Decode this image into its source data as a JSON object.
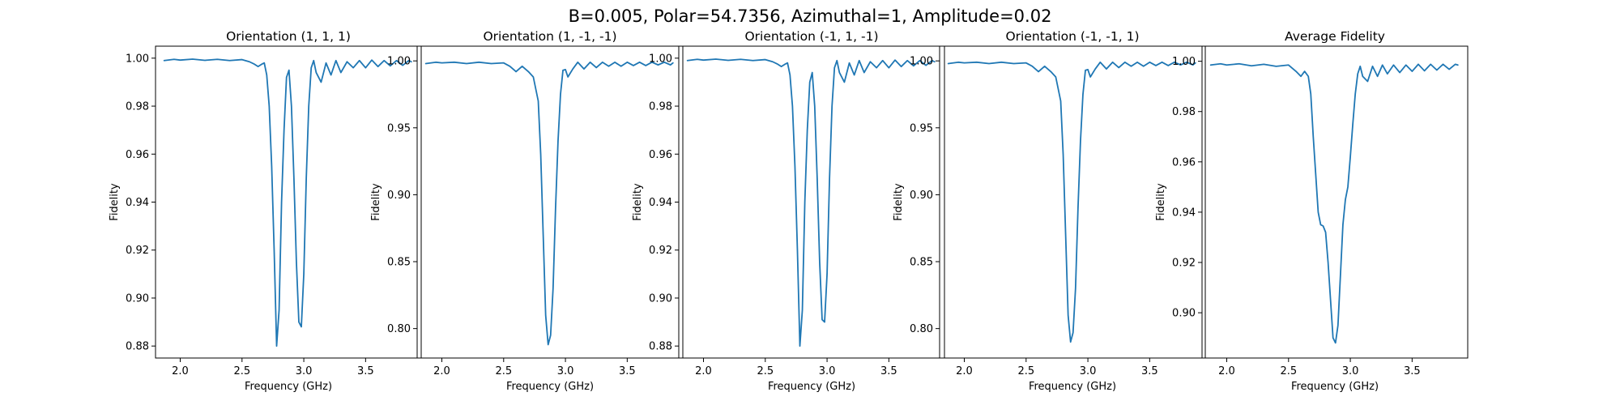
{
  "figure": {
    "suptitle": "B=0.005, Polar=54.7356, Azimuthal=1, Amplitude=0.02"
  },
  "colors": {
    "line": "#1f77b4"
  },
  "chart_data": [
    {
      "type": "line",
      "title": "Orientation (1, 1, 1)",
      "xlabel": "Frequency (GHz)",
      "ylabel": "Fidelity",
      "xlim": [
        1.8,
        3.95
      ],
      "ylim": [
        0.875,
        1.005
      ],
      "xticks": [
        2.0,
        2.5,
        3.0,
        3.5
      ],
      "xtick_labels": [
        "2.0",
        "2.5",
        "3.0",
        "3.5"
      ],
      "yticks": [
        0.88,
        0.9,
        0.92,
        0.94,
        0.96,
        0.98,
        1.0
      ],
      "ytick_labels": [
        "0.88",
        "0.90",
        "0.92",
        "0.94",
        "0.96",
        "0.98",
        "1.00"
      ],
      "series": [
        {
          "x": [
            1.87,
            1.95,
            2.0,
            2.1,
            2.2,
            2.3,
            2.4,
            2.5,
            2.56,
            2.6,
            2.63,
            2.66,
            2.68,
            2.7,
            2.72,
            2.74,
            2.76,
            2.78,
            2.8,
            2.82,
            2.84,
            2.86,
            2.88,
            2.9,
            2.92,
            2.94,
            2.96,
            2.98,
            3.0,
            3.02,
            3.04,
            3.06,
            3.08,
            3.1,
            3.14,
            3.18,
            3.22,
            3.26,
            3.3,
            3.35,
            3.4,
            3.45,
            3.5,
            3.55,
            3.6,
            3.65,
            3.7,
            3.75,
            3.8,
            3.85,
            3.87
          ],
          "y": [
            0.999,
            0.9995,
            0.9992,
            0.9996,
            0.9991,
            0.9995,
            0.999,
            0.9994,
            0.9985,
            0.9975,
            0.9965,
            0.9975,
            0.998,
            0.993,
            0.98,
            0.955,
            0.92,
            0.88,
            0.895,
            0.94,
            0.97,
            0.992,
            0.995,
            0.98,
            0.95,
            0.915,
            0.89,
            0.888,
            0.91,
            0.95,
            0.98,
            0.996,
            0.999,
            0.994,
            0.99,
            0.998,
            0.993,
            0.999,
            0.994,
            0.9985,
            0.996,
            0.999,
            0.996,
            0.9992,
            0.9965,
            0.999,
            0.9968,
            0.999,
            0.997,
            0.999,
            0.9985
          ]
        }
      ]
    },
    {
      "type": "line",
      "title": "Orientation (1, -1, -1)",
      "xlabel": "Frequency (GHz)",
      "ylabel": "Fidelity",
      "xlim": [
        1.8,
        3.95
      ],
      "ylim": [
        0.778,
        1.011
      ],
      "xticks": [
        2.0,
        2.5,
        3.0,
        3.5
      ],
      "xtick_labels": [
        "2.0",
        "2.5",
        "3.0",
        "3.5"
      ],
      "yticks": [
        0.8,
        0.85,
        0.9,
        0.95,
        1.0
      ],
      "ytick_labels": [
        "0.80",
        "0.85",
        "0.90",
        "0.95",
        "1.00"
      ],
      "series": [
        {
          "x": [
            1.87,
            1.95,
            2.0,
            2.1,
            2.2,
            2.3,
            2.4,
            2.5,
            2.55,
            2.6,
            2.65,
            2.7,
            2.74,
            2.78,
            2.8,
            2.82,
            2.84,
            2.86,
            2.88,
            2.9,
            2.92,
            2.94,
            2.96,
            2.98,
            3.0,
            3.02,
            3.06,
            3.1,
            3.15,
            3.2,
            3.25,
            3.3,
            3.35,
            3.4,
            3.45,
            3.5,
            3.55,
            3.6,
            3.65,
            3.7,
            3.75,
            3.8,
            3.85,
            3.87
          ],
          "y": [
            0.998,
            0.999,
            0.9985,
            0.999,
            0.998,
            0.999,
            0.998,
            0.9985,
            0.996,
            0.992,
            0.996,
            0.992,
            0.988,
            0.97,
            0.93,
            0.87,
            0.81,
            0.788,
            0.795,
            0.83,
            0.89,
            0.94,
            0.975,
            0.993,
            0.9935,
            0.988,
            0.994,
            0.999,
            0.994,
            0.999,
            0.995,
            0.999,
            0.996,
            0.999,
            0.996,
            0.999,
            0.9965,
            0.999,
            0.9965,
            0.999,
            0.997,
            0.999,
            0.997,
            0.9985
          ]
        }
      ]
    },
    {
      "type": "line",
      "title": "Orientation (-1, 1, -1)",
      "xlabel": "Frequency (GHz)",
      "ylabel": "Fidelity",
      "xlim": [
        1.8,
        3.95
      ],
      "ylim": [
        0.875,
        1.005
      ],
      "xticks": [
        2.0,
        2.5,
        3.0,
        3.5
      ],
      "xtick_labels": [
        "2.0",
        "2.5",
        "3.0",
        "3.5"
      ],
      "yticks": [
        0.88,
        0.9,
        0.92,
        0.94,
        0.96,
        0.98,
        1.0
      ],
      "ytick_labels": [
        "0.88",
        "0.90",
        "0.92",
        "0.94",
        "0.96",
        "0.98",
        "1.00"
      ],
      "series": [
        {
          "x": [
            1.87,
            1.95,
            2.0,
            2.1,
            2.2,
            2.3,
            2.4,
            2.5,
            2.56,
            2.6,
            2.63,
            2.66,
            2.68,
            2.7,
            2.72,
            2.74,
            2.76,
            2.78,
            2.8,
            2.82,
            2.84,
            2.86,
            2.88,
            2.9,
            2.92,
            2.94,
            2.96,
            2.98,
            3.0,
            3.02,
            3.04,
            3.06,
            3.08,
            3.1,
            3.14,
            3.18,
            3.22,
            3.26,
            3.3,
            3.35,
            3.4,
            3.45,
            3.5,
            3.55,
            3.6,
            3.65,
            3.7,
            3.75,
            3.8,
            3.85,
            3.87
          ],
          "y": [
            0.999,
            0.9995,
            0.9992,
            0.9996,
            0.9991,
            0.9995,
            0.999,
            0.9994,
            0.9985,
            0.9975,
            0.9965,
            0.9975,
            0.998,
            0.993,
            0.98,
            0.955,
            0.92,
            0.88,
            0.895,
            0.94,
            0.97,
            0.99,
            0.994,
            0.98,
            0.95,
            0.915,
            0.891,
            0.89,
            0.91,
            0.95,
            0.98,
            0.996,
            0.999,
            0.994,
            0.99,
            0.998,
            0.993,
            0.999,
            0.994,
            0.9985,
            0.996,
            0.999,
            0.996,
            0.9992,
            0.9965,
            0.999,
            0.9968,
            0.999,
            0.997,
            0.999,
            0.9985
          ]
        }
      ]
    },
    {
      "type": "line",
      "title": "Orientation (-1, -1, 1)",
      "xlabel": "Frequency (GHz)",
      "ylabel": "Fidelity",
      "xlim": [
        1.8,
        3.95
      ],
      "ylim": [
        0.778,
        1.011
      ],
      "xticks": [
        2.0,
        2.5,
        3.0,
        3.5
      ],
      "xtick_labels": [
        "2.0",
        "2.5",
        "3.0",
        "3.5"
      ],
      "yticks": [
        0.8,
        0.85,
        0.9,
        0.95,
        1.0
      ],
      "ytick_labels": [
        "0.80",
        "0.85",
        "0.90",
        "0.95",
        "1.00"
      ],
      "series": [
        {
          "x": [
            1.87,
            1.95,
            2.0,
            2.1,
            2.2,
            2.3,
            2.4,
            2.5,
            2.55,
            2.6,
            2.65,
            2.7,
            2.74,
            2.78,
            2.8,
            2.82,
            2.84,
            2.86,
            2.88,
            2.9,
            2.92,
            2.94,
            2.96,
            2.98,
            3.0,
            3.02,
            3.06,
            3.1,
            3.15,
            3.2,
            3.25,
            3.3,
            3.35,
            3.4,
            3.45,
            3.5,
            3.55,
            3.6,
            3.65,
            3.7,
            3.75,
            3.8,
            3.85,
            3.87
          ],
          "y": [
            0.998,
            0.999,
            0.9985,
            0.999,
            0.998,
            0.999,
            0.998,
            0.9985,
            0.996,
            0.992,
            0.996,
            0.992,
            0.988,
            0.97,
            0.93,
            0.87,
            0.81,
            0.79,
            0.797,
            0.83,
            0.89,
            0.94,
            0.975,
            0.993,
            0.9935,
            0.988,
            0.994,
            0.999,
            0.994,
            0.999,
            0.995,
            0.999,
            0.996,
            0.999,
            0.996,
            0.999,
            0.9965,
            0.999,
            0.9965,
            0.999,
            0.997,
            0.999,
            0.997,
            0.9985
          ]
        }
      ]
    },
    {
      "type": "line",
      "title": "Average Fidelity",
      "xlabel": "Frequency (GHz)",
      "ylabel": "Fidelity",
      "xlim": [
        1.8,
        3.95
      ],
      "ylim": [
        0.882,
        1.006
      ],
      "xticks": [
        2.0,
        2.5,
        3.0,
        3.5
      ],
      "xtick_labels": [
        "2.0",
        "2.5",
        "3.0",
        "3.5"
      ],
      "yticks": [
        0.9,
        0.92,
        0.94,
        0.96,
        0.98,
        1.0
      ],
      "ytick_labels": [
        "0.90",
        "0.92",
        "0.94",
        "0.96",
        "0.98",
        "1.00"
      ],
      "series": [
        {
          "x": [
            1.87,
            1.95,
            2.0,
            2.1,
            2.2,
            2.3,
            2.4,
            2.5,
            2.56,
            2.6,
            2.63,
            2.66,
            2.68,
            2.7,
            2.72,
            2.74,
            2.76,
            2.78,
            2.8,
            2.82,
            2.84,
            2.86,
            2.88,
            2.9,
            2.92,
            2.94,
            2.96,
            2.98,
            3.0,
            3.02,
            3.04,
            3.06,
            3.08,
            3.1,
            3.14,
            3.18,
            3.22,
            3.26,
            3.3,
            3.35,
            3.4,
            3.45,
            3.5,
            3.55,
            3.6,
            3.65,
            3.7,
            3.75,
            3.8,
            3.85,
            3.87
          ],
          "y": [
            0.9985,
            0.999,
            0.9985,
            0.999,
            0.9982,
            0.9988,
            0.998,
            0.9985,
            0.996,
            0.994,
            0.996,
            0.994,
            0.987,
            0.97,
            0.955,
            0.94,
            0.935,
            0.9345,
            0.932,
            0.92,
            0.905,
            0.89,
            0.888,
            0.895,
            0.915,
            0.935,
            0.945,
            0.95,
            0.962,
            0.975,
            0.987,
            0.995,
            0.998,
            0.994,
            0.992,
            0.998,
            0.994,
            0.9985,
            0.995,
            0.9985,
            0.9955,
            0.9985,
            0.996,
            0.9988,
            0.9962,
            0.9988,
            0.9965,
            0.9988,
            0.9968,
            0.9988,
            0.9985
          ]
        }
      ]
    }
  ]
}
